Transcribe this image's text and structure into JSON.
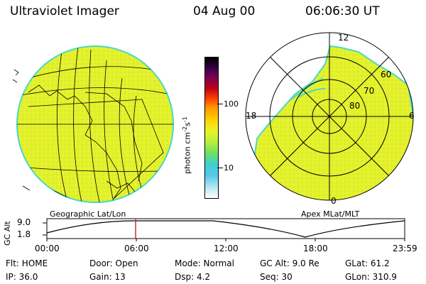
{
  "header": {
    "title": "Ultraviolet Imager",
    "date": "04 Aug 00",
    "time": "06:06:30 UT"
  },
  "colors": {
    "aurora_fill": "#e4f12a",
    "edge": "#49d8c8"
  },
  "geo_panel": {
    "label": "Geographic Lat/Lon"
  },
  "polar_panel": {
    "label": "Apex MLat/MLT",
    "mlt_labels": {
      "top": "12",
      "left": "18",
      "right": "6",
      "bottom": "0"
    },
    "lat_labels": [
      "60",
      "70",
      "80"
    ]
  },
  "colorbar": {
    "unit_label": "photon cm",
    "unit_sup1": "-2",
    "unit_s": "s",
    "unit_sup2": "-1",
    "ticks": [
      "100",
      "10"
    ]
  },
  "timeline": {
    "ylabel": "GC Alt",
    "yticks": [
      "9.0",
      "1.8"
    ],
    "xticks": [
      "00:00",
      "06:00",
      "12:00",
      "18:00",
      "23:59"
    ]
  },
  "footer": {
    "flt": "Flt: HOME",
    "door": "Door: Open",
    "mode": "Mode: Normal",
    "gcalt": "GC Alt: 9.0 Re",
    "glat": "GLat:  61.2",
    "ip": "IP: 36.0",
    "gain": "Gain: 13",
    "dsp": "Dsp:    4.2",
    "seq": "Seq: 30",
    "glon": "GLon: 310.9"
  }
}
